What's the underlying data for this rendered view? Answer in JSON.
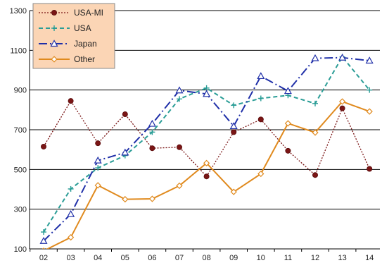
{
  "chart_data": {
    "type": "line",
    "categories": [
      "02",
      "03",
      "04",
      "05",
      "06",
      "07",
      "08",
      "09",
      "10",
      "11",
      "12",
      "13",
      "14"
    ],
    "ylim": [
      100,
      1300
    ],
    "yticks": [
      100,
      300,
      500,
      700,
      900,
      1100,
      1300
    ],
    "grid": "horizontal",
    "legend_position": "top-left",
    "series": [
      {
        "name": "USA-MI",
        "color": "#7a1515",
        "dash": "2,2",
        "marker": "circle",
        "values": [
          615,
          845,
          632,
          778,
          607,
          612,
          465,
          688,
          752,
          594,
          472,
          808,
          503
        ]
      },
      {
        "name": "USA",
        "color": "#2a9d96",
        "dash": "6,4",
        "marker": "plus",
        "values": [
          185,
          402,
          508,
          570,
          688,
          855,
          910,
          823,
          858,
          873,
          832,
          1067,
          900
        ]
      },
      {
        "name": "Japan",
        "color": "#1f2fa8",
        "dash": "12,4,2,4",
        "marker": "triangle",
        "values": [
          140,
          275,
          545,
          585,
          730,
          898,
          880,
          718,
          970,
          895,
          1060,
          1063,
          1048
        ]
      },
      {
        "name": "Other",
        "color": "#e08a1e",
        "dash": "",
        "marker": "diamond",
        "values": [
          90,
          158,
          420,
          350,
          352,
          418,
          532,
          387,
          478,
          732,
          686,
          842,
          792
        ]
      }
    ]
  }
}
